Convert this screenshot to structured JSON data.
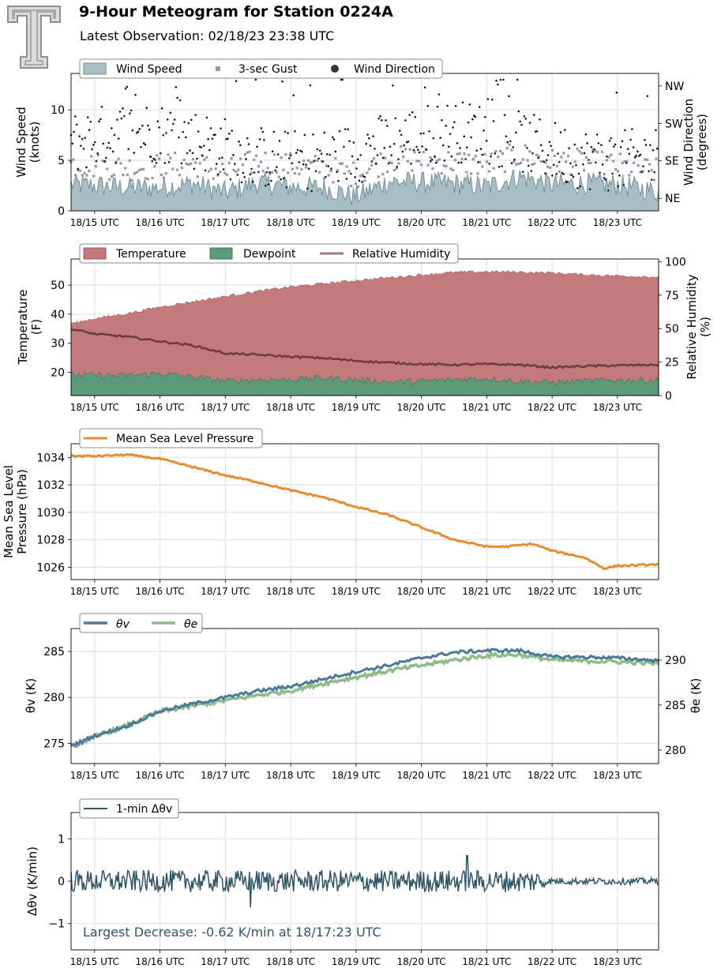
{
  "header": {
    "title": "9-Hour Meteogram for Station 0224A",
    "subtitle": "Latest Observation: 02/18/23 23:38 UTC"
  },
  "time_ticks": [
    "18/15 UTC",
    "18/16 UTC",
    "18/17 UTC",
    "18/18 UTC",
    "18/19 UTC",
    "18/20 UTC",
    "18/21 UTC",
    "18/22 UTC",
    "18/23 UTC"
  ],
  "colors": {
    "wind_speed_fill": "#a7bec4",
    "wind_speed_line": "#6f8f98",
    "gust": "#9a94ad",
    "direction": "#1a1a1a",
    "temperature": "#c27a7d",
    "dewpoint": "#5c9a7a",
    "rh": "#6e3a3a",
    "pressure": "#e68d33",
    "theta_v": "#4a7a98",
    "theta_e": "#8ebb8a",
    "delta": "#2f5667",
    "annotation": "#2f5667"
  },
  "chart_data": [
    {
      "id": "wind",
      "type": "area",
      "legend": [
        "Wind Speed",
        "3-sec Gust",
        "Wind Direction"
      ],
      "ylabel": "Wind Speed\n(knots)",
      "ylabel_right": "Wind Direction\n(degrees)",
      "ylim": [
        0,
        13.6
      ],
      "yticks": [
        0,
        5,
        10
      ],
      "right_ticks": [
        "NE",
        "SE",
        "SW",
        "NW"
      ],
      "series": [
        {
          "name": "Wind Speed",
          "x_hours": [
            14.67,
            15,
            15.5,
            16,
            16.5,
            17,
            17.5,
            18,
            18.5,
            19,
            19.5,
            20,
            20.5,
            21,
            21.5,
            22,
            22.5,
            23,
            23.63
          ],
          "values": [
            2.6,
            2.5,
            2.3,
            2.3,
            2.7,
            1.8,
            2.8,
            2.4,
            2.3,
            1.4,
            2.9,
            2.8,
            2.7,
            2.4,
            3.4,
            2.6,
            2.7,
            2.6,
            1.9
          ]
        },
        {
          "name": "3-sec Gust",
          "x_hours": [
            14.67,
            15,
            15.5,
            16,
            16.5,
            17,
            17.5,
            18,
            18.5,
            19,
            19.5,
            20,
            20.5,
            21,
            21.5,
            22,
            22.5,
            23,
            23.63
          ],
          "values": [
            4.4,
            4.2,
            4.0,
            4.1,
            4.5,
            3.5,
            4.7,
            4.2,
            4.0,
            3.3,
            4.9,
            4.8,
            4.6,
            4.3,
            5.3,
            4.6,
            4.6,
            4.2,
            3.6
          ]
        }
      ]
    },
    {
      "id": "temp",
      "type": "area",
      "legend": [
        "Temperature",
        "Dewpoint",
        "Relative Humidity"
      ],
      "ylabel": "Temperature\n(F)",
      "ylabel_right": "Relative Humidity\n(%)",
      "ylim": [
        12,
        59
      ],
      "yticks": [
        20,
        30,
        40,
        50
      ],
      "ylim_right": [
        0,
        102
      ],
      "yticks_right": [
        0,
        25,
        50,
        75,
        100
      ],
      "series": [
        {
          "name": "Temperature",
          "x_hours": [
            14.67,
            15,
            15.5,
            16,
            16.5,
            17,
            17.5,
            18,
            18.5,
            19,
            19.5,
            20,
            20.5,
            21,
            21.5,
            22,
            22.5,
            23,
            23.63
          ],
          "values": [
            36.9,
            38.5,
            40.2,
            42.5,
            44.3,
            46.1,
            47.9,
            49.4,
            50.5,
            51.6,
            52.6,
            53.5,
            54.4,
            54.6,
            54.5,
            54.2,
            53.6,
            53.2,
            52.8
          ]
        },
        {
          "name": "Dewpoint",
          "x_hours": [
            14.67,
            15,
            15.5,
            16,
            16.5,
            17,
            17.5,
            18,
            18.5,
            19,
            19.5,
            20,
            20.5,
            21,
            21.5,
            22,
            22.5,
            23,
            23.63
          ],
          "values": [
            19.2,
            19.0,
            18.9,
            19.6,
            18.4,
            17.0,
            17.5,
            17.6,
            18.1,
            17.4,
            16.7,
            16.9,
            17.6,
            17.9,
            16.9,
            16.6,
            17.0,
            17.4,
            17.3
          ]
        },
        {
          "name": "Relative Humidity",
          "x_hours": [
            14.67,
            15,
            15.5,
            16,
            16.5,
            17,
            17.5,
            18,
            18.5,
            19,
            19.5,
            20,
            20.5,
            21,
            21.5,
            22,
            22.5,
            23,
            23.63
          ],
          "values": [
            49.5,
            46.0,
            44.0,
            40.5,
            37.5,
            31.5,
            30.5,
            29.0,
            28.0,
            26.0,
            24.5,
            23.5,
            23.0,
            23.5,
            23.0,
            21.0,
            22.0,
            22.5,
            23.0
          ]
        }
      ]
    },
    {
      "id": "pressure",
      "type": "line",
      "legend": [
        "Mean Sea Level Pressure"
      ],
      "ylabel": "Mean Sea Level\nPressure (hPa)",
      "ylim": [
        1025.1,
        1035.0
      ],
      "yticks": [
        1026,
        1028,
        1030,
        1032,
        1034
      ],
      "series": [
        {
          "name": "Mean Sea Level Pressure",
          "x_hours": [
            14.67,
            15,
            15.5,
            16,
            16.5,
            17,
            17.5,
            18,
            18.5,
            19,
            19.5,
            20,
            20.5,
            21,
            21.3,
            21.7,
            22,
            22.5,
            22.8,
            23,
            23.63
          ],
          "values": [
            1034.1,
            1034.1,
            1034.2,
            1033.9,
            1033.3,
            1032.7,
            1032.2,
            1031.6,
            1031.1,
            1030.4,
            1029.8,
            1028.9,
            1028.0,
            1027.5,
            1027.5,
            1027.7,
            1027.2,
            1026.7,
            1025.9,
            1026.1,
            1026.2
          ]
        }
      ]
    },
    {
      "id": "theta",
      "type": "line",
      "legend": [
        "θv",
        "θe"
      ],
      "ylabel": "θv (K)",
      "ylabel_right": "θe (K)",
      "ylim": [
        272.8,
        287.5
      ],
      "yticks": [
        275,
        280,
        285
      ],
      "ylim_right": [
        278.5,
        293.5
      ],
      "yticks_right": [
        280,
        285,
        290
      ],
      "series": [
        {
          "name": "θv",
          "x_hours": [
            14.67,
            15,
            15.5,
            16,
            16.5,
            17,
            17.5,
            18,
            18.5,
            19,
            19.5,
            20,
            20.5,
            21,
            21.5,
            22,
            22.5,
            23,
            23.63
          ],
          "values": [
            274.8,
            275.8,
            276.9,
            278.5,
            279.3,
            280.0,
            280.7,
            281.2,
            282.0,
            282.8,
            283.5,
            284.3,
            284.9,
            285.1,
            285.1,
            284.4,
            284.4,
            284.3,
            284.0
          ]
        },
        {
          "name": "θe",
          "x_hours": [
            14.67,
            15,
            15.5,
            16,
            16.5,
            17,
            17.5,
            18,
            18.5,
            19,
            19.5,
            20,
            20.5,
            21,
            21.5,
            22,
            22.5,
            23,
            23.63
          ],
          "values": [
            280.4,
            281.5,
            282.7,
            284.3,
            284.9,
            285.5,
            286.1,
            286.6,
            287.4,
            288.1,
            288.8,
            289.4,
            290.0,
            290.5,
            290.6,
            290.0,
            289.9,
            289.8,
            289.6
          ]
        }
      ]
    },
    {
      "id": "delta",
      "type": "line",
      "legend": [
        "1-min Δθv"
      ],
      "ylabel": "Δθv (K/min)",
      "ylim": [
        -1.62,
        1.62
      ],
      "yticks": [
        -1,
        0,
        1
      ],
      "annotation": "Largest Decrease: -0.62 K/min at 18/17:23 UTC",
      "series": [
        {
          "name": "1-min Δθv",
          "x_hours": [
            14.67,
            15,
            15.5,
            16,
            16.5,
            17,
            17.38,
            17.5,
            18,
            18.5,
            19,
            19.5,
            20,
            20.5,
            20.7,
            21,
            21.5,
            22,
            22.5,
            23,
            23.63
          ],
          "values": [
            0.0,
            0.2,
            -0.3,
            0.35,
            -0.3,
            0.3,
            -0.62,
            0.25,
            -0.3,
            0.3,
            -0.3,
            0.35,
            -0.3,
            0.3,
            0.6,
            -0.25,
            0.25,
            -0.15,
            0.1,
            -0.1,
            0.0
          ]
        }
      ]
    }
  ]
}
